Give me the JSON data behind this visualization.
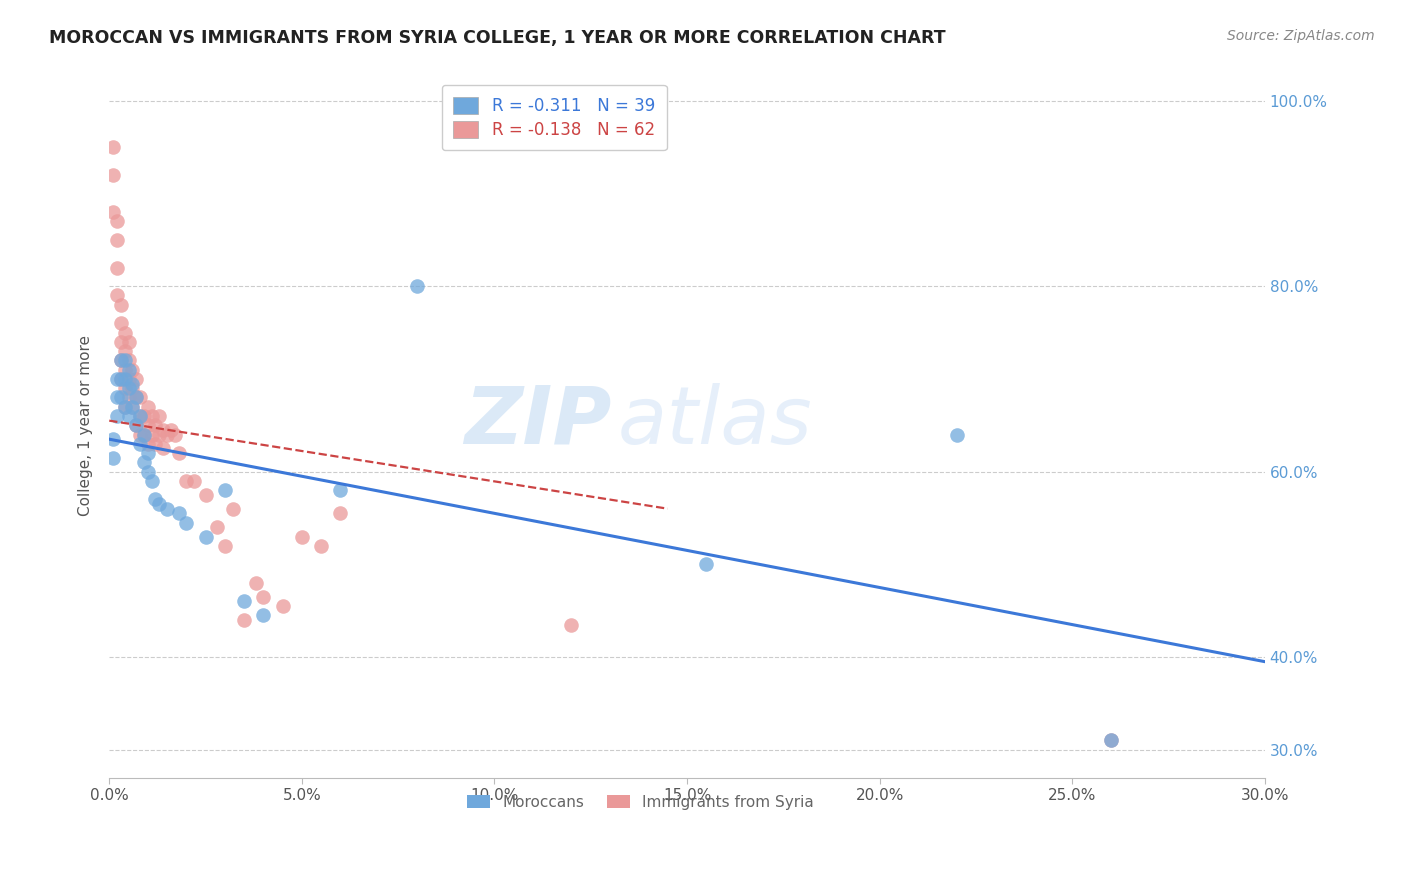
{
  "title": "MOROCCAN VS IMMIGRANTS FROM SYRIA COLLEGE, 1 YEAR OR MORE CORRELATION CHART",
  "source": "Source: ZipAtlas.com",
  "ylabel": "College, 1 year or more",
  "right_ytick_labels": [
    "100.0%",
    "80.0%",
    "60.0%",
    "40.0%",
    "30.0%"
  ],
  "right_ytick_values": [
    1.0,
    0.8,
    0.6,
    0.4,
    0.3
  ],
  "xlim": [
    0.0,
    0.3
  ],
  "ylim": [
    0.27,
    1.03
  ],
  "xtick_labels": [
    "0.0%",
    "5.0%",
    "10.0%",
    "15.0%",
    "20.0%",
    "25.0%",
    "30.0%"
  ],
  "xtick_values": [
    0.0,
    0.05,
    0.1,
    0.15,
    0.2,
    0.25,
    0.3
  ],
  "moroccans_color": "#6fa8dc",
  "syria_color": "#ea9999",
  "moroccans_line_color": "#3c78d8",
  "syria_line_color": "#cc4444",
  "legend_R_moroccan": "R = -0.311",
  "legend_N_moroccan": "N = 39",
  "legend_R_syria": "R = -0.138",
  "legend_N_syria": "N = 62",
  "watermark_zip": "ZIP",
  "watermark_atlas": "atlas",
  "moroccan_x": [
    0.001,
    0.001,
    0.002,
    0.002,
    0.002,
    0.003,
    0.003,
    0.003,
    0.004,
    0.004,
    0.004,
    0.005,
    0.005,
    0.005,
    0.006,
    0.006,
    0.007,
    0.007,
    0.008,
    0.008,
    0.009,
    0.009,
    0.01,
    0.01,
    0.011,
    0.012,
    0.013,
    0.015,
    0.018,
    0.02,
    0.025,
    0.03,
    0.035,
    0.04,
    0.06,
    0.08,
    0.155,
    0.22,
    0.26
  ],
  "moroccan_y": [
    0.635,
    0.615,
    0.7,
    0.68,
    0.66,
    0.72,
    0.7,
    0.68,
    0.72,
    0.7,
    0.67,
    0.71,
    0.69,
    0.66,
    0.695,
    0.67,
    0.68,
    0.65,
    0.66,
    0.63,
    0.64,
    0.61,
    0.62,
    0.6,
    0.59,
    0.57,
    0.565,
    0.56,
    0.555,
    0.545,
    0.53,
    0.58,
    0.46,
    0.445,
    0.58,
    0.8,
    0.5,
    0.64,
    0.31
  ],
  "syria_x": [
    0.001,
    0.001,
    0.001,
    0.002,
    0.002,
    0.002,
    0.002,
    0.003,
    0.003,
    0.003,
    0.003,
    0.003,
    0.004,
    0.004,
    0.004,
    0.004,
    0.004,
    0.005,
    0.005,
    0.005,
    0.005,
    0.006,
    0.006,
    0.006,
    0.007,
    0.007,
    0.007,
    0.008,
    0.008,
    0.008,
    0.009,
    0.009,
    0.01,
    0.01,
    0.01,
    0.011,
    0.011,
    0.012,
    0.012,
    0.013,
    0.013,
    0.014,
    0.014,
    0.015,
    0.016,
    0.017,
    0.018,
    0.02,
    0.022,
    0.025,
    0.028,
    0.03,
    0.032,
    0.035,
    0.038,
    0.04,
    0.045,
    0.05,
    0.055,
    0.06,
    0.12,
    0.26
  ],
  "syria_y": [
    0.95,
    0.92,
    0.88,
    0.87,
    0.85,
    0.82,
    0.79,
    0.78,
    0.76,
    0.74,
    0.72,
    0.7,
    0.75,
    0.73,
    0.71,
    0.69,
    0.67,
    0.74,
    0.72,
    0.7,
    0.68,
    0.71,
    0.69,
    0.67,
    0.7,
    0.68,
    0.65,
    0.68,
    0.66,
    0.64,
    0.66,
    0.64,
    0.67,
    0.65,
    0.63,
    0.66,
    0.64,
    0.65,
    0.63,
    0.66,
    0.64,
    0.645,
    0.625,
    0.64,
    0.645,
    0.64,
    0.62,
    0.59,
    0.59,
    0.575,
    0.54,
    0.52,
    0.56,
    0.44,
    0.48,
    0.465,
    0.455,
    0.53,
    0.52,
    0.555,
    0.435,
    0.31
  ],
  "moroccan_line_x0": 0.0,
  "moroccan_line_y0": 0.635,
  "moroccan_line_x1": 0.3,
  "moroccan_line_y1": 0.395,
  "syria_line_x0": 0.0,
  "syria_line_y0": 0.655,
  "syria_line_x1": 0.145,
  "syria_line_y1": 0.56
}
